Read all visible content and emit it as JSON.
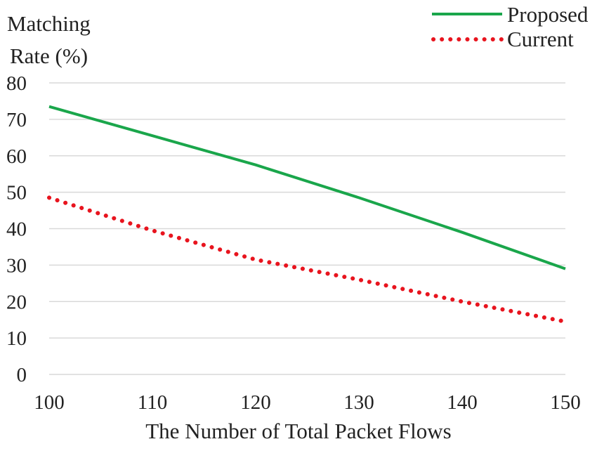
{
  "chart_data": {
    "type": "line",
    "title": "",
    "xlabel": "The Number  of Total Packet Flows",
    "ylabel_lines": [
      "Matching",
      "Rate (%)"
    ],
    "xlim": [
      100,
      150
    ],
    "ylim": [
      0,
      80
    ],
    "x_ticks": [
      "100",
      "110",
      "120",
      "130",
      "140",
      "150"
    ],
    "y_ticks": [
      "0",
      "10",
      "20",
      "30",
      "40",
      "50",
      "60",
      "70",
      "80"
    ],
    "grid": "horizontal",
    "legend_position": "top-right",
    "x": [
      100,
      110,
      120,
      130,
      140,
      150
    ],
    "series": [
      {
        "name": "Proposed",
        "color": "#1aa64b",
        "style": "solid",
        "values": [
          73.5,
          65.5,
          57.5,
          48.5,
          39,
          29
        ]
      },
      {
        "name": "Current",
        "color": "#e8141e",
        "style": "dotted",
        "values": [
          48.5,
          39.5,
          31.5,
          26,
          20,
          14.5
        ]
      }
    ]
  }
}
